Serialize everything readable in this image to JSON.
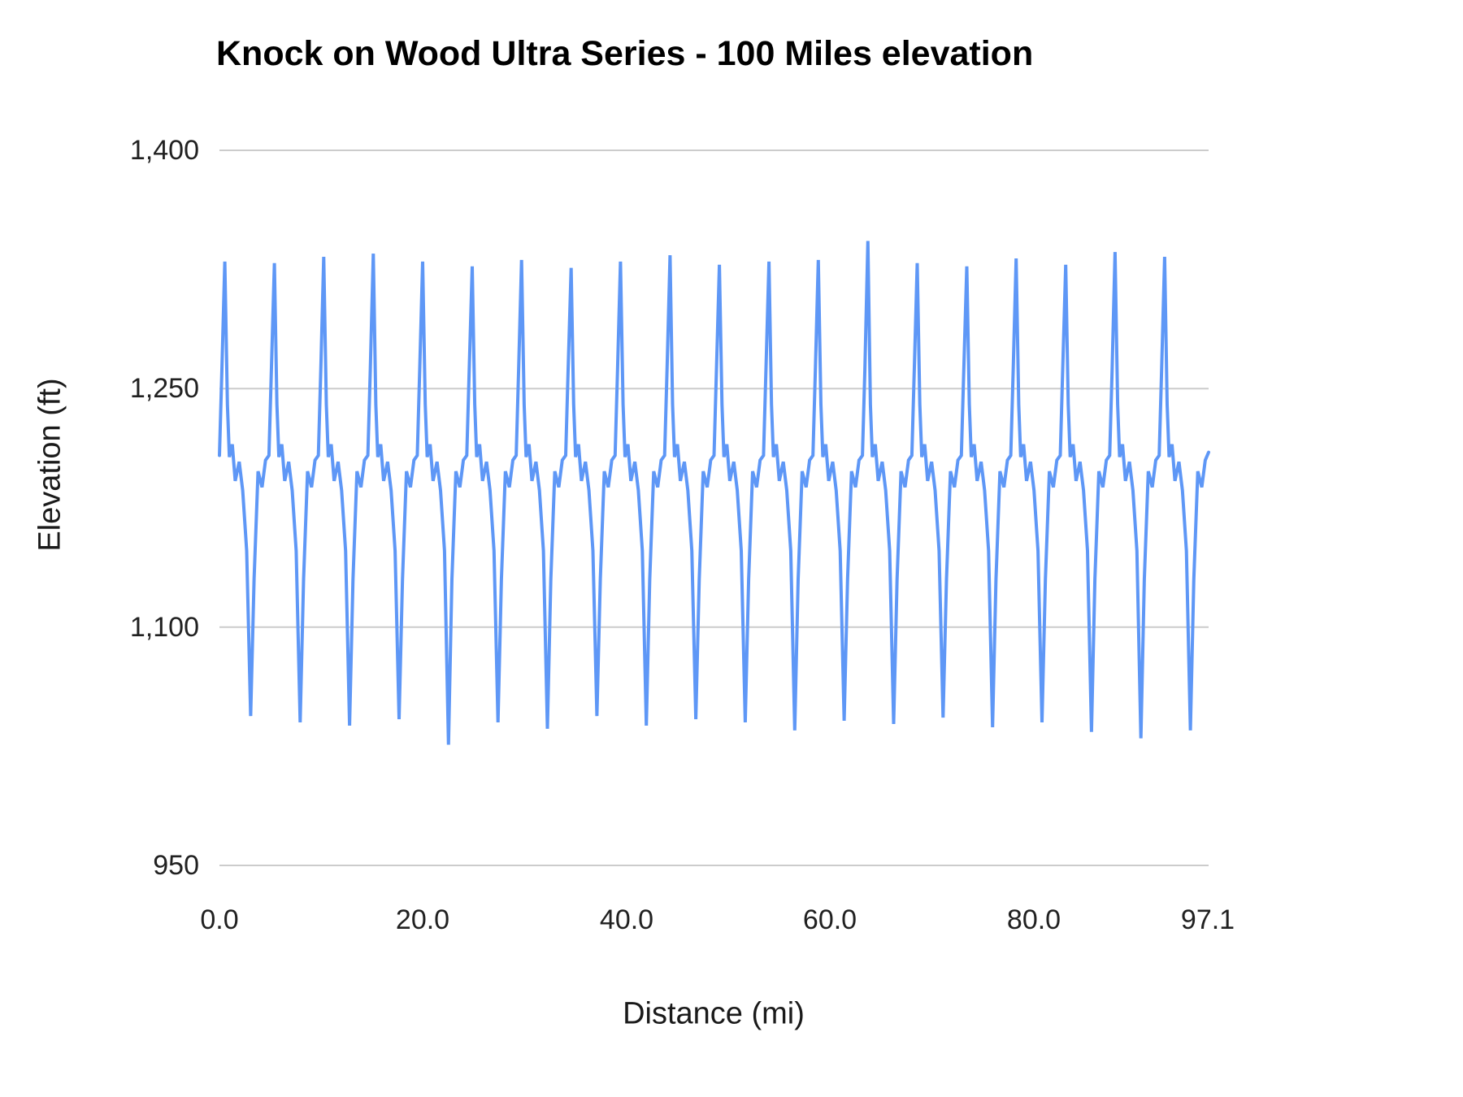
{
  "chart_data": {
    "type": "line",
    "title": "Knock on Wood Ultra Series - 100 Miles elevation",
    "xlabel": "Distance (mi)",
    "ylabel": "Elevation (ft)",
    "xlim": [
      0,
      97.1
    ],
    "ylim": [
      950,
      1400
    ],
    "grid": "horizontal",
    "legend": "none",
    "line_color": "#5e97f6",
    "gridline_color": "#cccccc",
    "x_tick_labels": [
      "0.0",
      "20.0",
      "40.0",
      "60.0",
      "80.0",
      "97.1"
    ],
    "x_tick_values": [
      0,
      20,
      40,
      60,
      80,
      97.1
    ],
    "y_tick_labels": [
      "950",
      "1,100",
      "1,250",
      "1,400"
    ],
    "y_tick_values": [
      950,
      1100,
      1250,
      1400
    ],
    "series": [
      {
        "name": "Elevation",
        "points": [
          [
            0.0,
            1208
          ],
          [
            0.24,
            1262
          ],
          [
            0.53,
            1330
          ],
          [
            0.78,
            1240
          ],
          [
            0.97,
            1207
          ],
          [
            1.26,
            1215
          ],
          [
            1.55,
            1192
          ],
          [
            1.94,
            1204
          ],
          [
            2.28,
            1186
          ],
          [
            2.67,
            1148
          ],
          [
            3.06,
            1044
          ],
          [
            3.4,
            1130
          ],
          [
            3.79,
            1198
          ],
          [
            4.18,
            1188
          ],
          [
            4.52,
            1205
          ],
          [
            4.86,
            1208
          ],
          [
            5.1,
            1262
          ],
          [
            5.39,
            1329
          ],
          [
            5.64,
            1240
          ],
          [
            5.83,
            1207
          ],
          [
            6.12,
            1215
          ],
          [
            6.41,
            1192
          ],
          [
            6.8,
            1204
          ],
          [
            7.14,
            1186
          ],
          [
            7.53,
            1148
          ],
          [
            7.92,
            1040
          ],
          [
            8.26,
            1130
          ],
          [
            8.65,
            1198
          ],
          [
            9.04,
            1188
          ],
          [
            9.38,
            1205
          ],
          [
            9.71,
            1208
          ],
          [
            9.95,
            1262
          ],
          [
            10.24,
            1333
          ],
          [
            10.49,
            1240
          ],
          [
            10.68,
            1207
          ],
          [
            10.97,
            1215
          ],
          [
            11.26,
            1192
          ],
          [
            11.65,
            1204
          ],
          [
            11.99,
            1186
          ],
          [
            12.38,
            1148
          ],
          [
            12.77,
            1038
          ],
          [
            13.11,
            1130
          ],
          [
            13.5,
            1198
          ],
          [
            13.89,
            1188
          ],
          [
            14.23,
            1205
          ],
          [
            14.57,
            1208
          ],
          [
            14.81,
            1262
          ],
          [
            15.1,
            1335
          ],
          [
            15.35,
            1240
          ],
          [
            15.54,
            1207
          ],
          [
            15.83,
            1215
          ],
          [
            16.12,
            1192
          ],
          [
            16.51,
            1204
          ],
          [
            16.85,
            1186
          ],
          [
            17.24,
            1148
          ],
          [
            17.63,
            1042
          ],
          [
            17.97,
            1130
          ],
          [
            18.36,
            1198
          ],
          [
            18.75,
            1188
          ],
          [
            19.09,
            1205
          ],
          [
            19.42,
            1208
          ],
          [
            19.66,
            1262
          ],
          [
            19.95,
            1330
          ],
          [
            20.2,
            1240
          ],
          [
            20.39,
            1207
          ],
          [
            20.68,
            1215
          ],
          [
            20.97,
            1192
          ],
          [
            21.36,
            1204
          ],
          [
            21.7,
            1186
          ],
          [
            22.09,
            1148
          ],
          [
            22.48,
            1026
          ],
          [
            22.82,
            1130
          ],
          [
            23.21,
            1198
          ],
          [
            23.6,
            1188
          ],
          [
            23.94,
            1205
          ],
          [
            24.28,
            1208
          ],
          [
            24.52,
            1262
          ],
          [
            24.81,
            1327
          ],
          [
            25.06,
            1240
          ],
          [
            25.25,
            1207
          ],
          [
            25.54,
            1215
          ],
          [
            25.83,
            1192
          ],
          [
            26.22,
            1204
          ],
          [
            26.56,
            1186
          ],
          [
            26.95,
            1148
          ],
          [
            27.34,
            1040
          ],
          [
            27.68,
            1130
          ],
          [
            28.07,
            1198
          ],
          [
            28.46,
            1188
          ],
          [
            28.8,
            1205
          ],
          [
            29.13,
            1208
          ],
          [
            29.37,
            1262
          ],
          [
            29.66,
            1331
          ],
          [
            29.91,
            1240
          ],
          [
            30.1,
            1207
          ],
          [
            30.39,
            1215
          ],
          [
            30.68,
            1192
          ],
          [
            31.07,
            1204
          ],
          [
            31.41,
            1186
          ],
          [
            31.8,
            1148
          ],
          [
            32.19,
            1036
          ],
          [
            32.53,
            1130
          ],
          [
            32.92,
            1198
          ],
          [
            33.31,
            1188
          ],
          [
            33.65,
            1205
          ],
          [
            33.99,
            1208
          ],
          [
            34.23,
            1262
          ],
          [
            34.52,
            1326
          ],
          [
            34.77,
            1240
          ],
          [
            34.96,
            1207
          ],
          [
            35.25,
            1215
          ],
          [
            35.54,
            1192
          ],
          [
            35.93,
            1204
          ],
          [
            36.27,
            1186
          ],
          [
            36.66,
            1148
          ],
          [
            37.05,
            1044
          ],
          [
            37.39,
            1130
          ],
          [
            37.78,
            1198
          ],
          [
            38.17,
            1188
          ],
          [
            38.51,
            1205
          ],
          [
            38.84,
            1208
          ],
          [
            39.08,
            1262
          ],
          [
            39.37,
            1330
          ],
          [
            39.62,
            1240
          ],
          [
            39.81,
            1207
          ],
          [
            40.1,
            1215
          ],
          [
            40.39,
            1192
          ],
          [
            40.78,
            1204
          ],
          [
            41.12,
            1186
          ],
          [
            41.51,
            1148
          ],
          [
            41.9,
            1038
          ],
          [
            42.24,
            1130
          ],
          [
            42.63,
            1198
          ],
          [
            43.02,
            1188
          ],
          [
            43.36,
            1205
          ],
          [
            43.7,
            1208
          ],
          [
            43.94,
            1262
          ],
          [
            44.23,
            1334
          ],
          [
            44.48,
            1240
          ],
          [
            44.67,
            1207
          ],
          [
            44.96,
            1215
          ],
          [
            45.25,
            1192
          ],
          [
            45.64,
            1204
          ],
          [
            45.98,
            1186
          ],
          [
            46.37,
            1148
          ],
          [
            46.76,
            1042
          ],
          [
            47.1,
            1130
          ],
          [
            47.49,
            1198
          ],
          [
            47.88,
            1188
          ],
          [
            48.22,
            1205
          ],
          [
            48.55,
            1208
          ],
          [
            48.79,
            1262
          ],
          [
            49.08,
            1328
          ],
          [
            49.33,
            1240
          ],
          [
            49.52,
            1207
          ],
          [
            49.81,
            1215
          ],
          [
            50.1,
            1192
          ],
          [
            50.49,
            1204
          ],
          [
            50.83,
            1186
          ],
          [
            51.22,
            1148
          ],
          [
            51.61,
            1040
          ],
          [
            51.95,
            1130
          ],
          [
            52.34,
            1198
          ],
          [
            52.73,
            1188
          ],
          [
            53.07,
            1205
          ],
          [
            53.41,
            1208
          ],
          [
            53.65,
            1262
          ],
          [
            53.94,
            1330
          ],
          [
            54.19,
            1240
          ],
          [
            54.38,
            1207
          ],
          [
            54.67,
            1215
          ],
          [
            54.96,
            1192
          ],
          [
            55.35,
            1204
          ],
          [
            55.69,
            1186
          ],
          [
            56.08,
            1148
          ],
          [
            56.47,
            1035
          ],
          [
            56.81,
            1130
          ],
          [
            57.2,
            1198
          ],
          [
            57.59,
            1188
          ],
          [
            57.93,
            1205
          ],
          [
            58.26,
            1208
          ],
          [
            58.5,
            1262
          ],
          [
            58.79,
            1331
          ],
          [
            59.04,
            1240
          ],
          [
            59.23,
            1207
          ],
          [
            59.52,
            1215
          ],
          [
            59.81,
            1192
          ],
          [
            60.2,
            1204
          ],
          [
            60.54,
            1186
          ],
          [
            60.93,
            1148
          ],
          [
            61.32,
            1041
          ],
          [
            61.66,
            1130
          ],
          [
            62.05,
            1198
          ],
          [
            62.44,
            1188
          ],
          [
            62.78,
            1205
          ],
          [
            63.12,
            1208
          ],
          [
            63.36,
            1262
          ],
          [
            63.65,
            1343
          ],
          [
            63.9,
            1240
          ],
          [
            64.09,
            1207
          ],
          [
            64.38,
            1215
          ],
          [
            64.67,
            1192
          ],
          [
            65.06,
            1204
          ],
          [
            65.4,
            1186
          ],
          [
            65.79,
            1148
          ],
          [
            66.18,
            1039
          ],
          [
            66.52,
            1130
          ],
          [
            66.91,
            1198
          ],
          [
            67.3,
            1188
          ],
          [
            67.64,
            1205
          ],
          [
            67.97,
            1208
          ],
          [
            68.21,
            1262
          ],
          [
            68.5,
            1329
          ],
          [
            68.75,
            1240
          ],
          [
            68.94,
            1207
          ],
          [
            69.23,
            1215
          ],
          [
            69.52,
            1192
          ],
          [
            69.91,
            1204
          ],
          [
            70.25,
            1186
          ],
          [
            70.64,
            1148
          ],
          [
            71.03,
            1043
          ],
          [
            71.37,
            1130
          ],
          [
            71.76,
            1198
          ],
          [
            72.15,
            1188
          ],
          [
            72.49,
            1205
          ],
          [
            72.83,
            1208
          ],
          [
            73.07,
            1262
          ],
          [
            73.36,
            1327
          ],
          [
            73.61,
            1240
          ],
          [
            73.8,
            1207
          ],
          [
            74.09,
            1215
          ],
          [
            74.38,
            1192
          ],
          [
            74.77,
            1204
          ],
          [
            75.11,
            1186
          ],
          [
            75.5,
            1148
          ],
          [
            75.89,
            1037
          ],
          [
            76.23,
            1130
          ],
          [
            76.62,
            1198
          ],
          [
            77.01,
            1188
          ],
          [
            77.35,
            1205
          ],
          [
            77.68,
            1208
          ],
          [
            77.92,
            1262
          ],
          [
            78.21,
            1332
          ],
          [
            78.46,
            1240
          ],
          [
            78.65,
            1207
          ],
          [
            78.94,
            1215
          ],
          [
            79.23,
            1192
          ],
          [
            79.62,
            1204
          ],
          [
            79.96,
            1186
          ],
          [
            80.35,
            1148
          ],
          [
            80.74,
            1040
          ],
          [
            81.08,
            1130
          ],
          [
            81.47,
            1198
          ],
          [
            81.86,
            1188
          ],
          [
            82.2,
            1205
          ],
          [
            82.54,
            1208
          ],
          [
            82.78,
            1262
          ],
          [
            83.07,
            1328
          ],
          [
            83.32,
            1240
          ],
          [
            83.51,
            1207
          ],
          [
            83.8,
            1215
          ],
          [
            84.09,
            1192
          ],
          [
            84.48,
            1204
          ],
          [
            84.82,
            1186
          ],
          [
            85.21,
            1148
          ],
          [
            85.6,
            1034
          ],
          [
            85.94,
            1130
          ],
          [
            86.33,
            1198
          ],
          [
            86.72,
            1188
          ],
          [
            87.06,
            1205
          ],
          [
            87.39,
            1208
          ],
          [
            87.63,
            1262
          ],
          [
            87.92,
            1336
          ],
          [
            88.17,
            1240
          ],
          [
            88.36,
            1207
          ],
          [
            88.65,
            1215
          ],
          [
            88.94,
            1192
          ],
          [
            89.33,
            1204
          ],
          [
            89.67,
            1186
          ],
          [
            90.06,
            1148
          ],
          [
            90.45,
            1030
          ],
          [
            90.79,
            1130
          ],
          [
            91.18,
            1198
          ],
          [
            91.57,
            1188
          ],
          [
            91.91,
            1205
          ],
          [
            92.25,
            1208
          ],
          [
            92.49,
            1262
          ],
          [
            92.78,
            1333
          ],
          [
            93.03,
            1240
          ],
          [
            93.22,
            1207
          ],
          [
            93.51,
            1215
          ],
          [
            93.8,
            1192
          ],
          [
            94.19,
            1204
          ],
          [
            94.53,
            1186
          ],
          [
            94.92,
            1148
          ],
          [
            95.31,
            1035
          ],
          [
            95.65,
            1130
          ],
          [
            96.04,
            1198
          ],
          [
            96.43,
            1188
          ],
          [
            96.77,
            1205
          ],
          [
            97.1,
            1210
          ]
        ]
      }
    ]
  }
}
